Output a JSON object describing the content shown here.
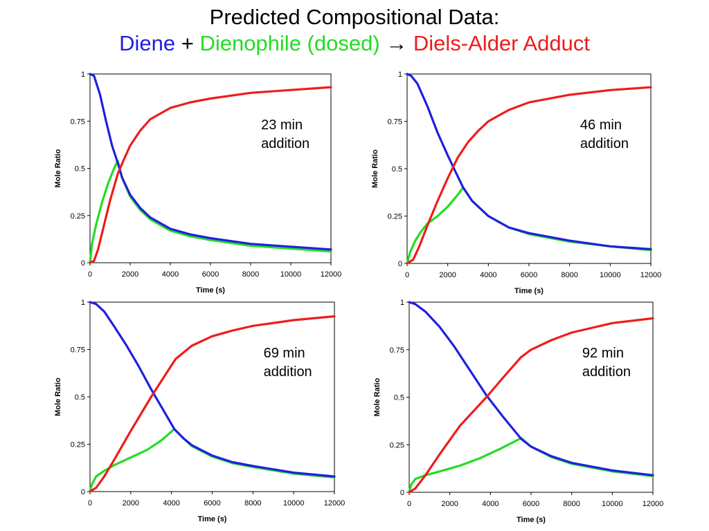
{
  "title": {
    "line1": "Predicted Compositional Data:",
    "diene": "Diene",
    "plus": "+",
    "dienophile": "Dienophile (dosed)",
    "arrow": "→",
    "adduct": "Diels-Alder Adduct"
  },
  "colors": {
    "diene": "#1f1fe0",
    "dienophile": "#22dd22",
    "adduct": "#ee1c1c"
  },
  "chart_data": [
    {
      "type": "line",
      "annotation": [
        "23 min",
        "addition"
      ],
      "xlabel": "Time (s)",
      "ylabel": "Mole Ratio",
      "xlim": [
        0,
        12000
      ],
      "ylim": [
        0,
        1
      ],
      "xticks": [
        "0",
        "2000",
        "4000",
        "6000",
        "8000",
        "10000",
        "12000"
      ],
      "yticks": [
        "0",
        "0.25",
        "0.5",
        "0.75",
        "1"
      ],
      "grid": false,
      "series": [
        {
          "key": "diene",
          "x": [
            0,
            200,
            500,
            800,
            1100,
            1380,
            1600,
            2000,
            2500,
            3000,
            4000,
            5000,
            6000,
            8000,
            10000,
            12000
          ],
          "y": [
            1,
            0.99,
            0.89,
            0.75,
            0.62,
            0.53,
            0.45,
            0.36,
            0.29,
            0.24,
            0.18,
            0.15,
            0.13,
            0.1,
            0.085,
            0.07
          ]
        },
        {
          "key": "dienophile",
          "x": [
            0,
            100,
            300,
            600,
            900,
            1200,
            1380,
            1600,
            2000,
            2500,
            3000,
            4000,
            5000,
            6000,
            8000,
            10000,
            12000
          ],
          "y": [
            0,
            0.1,
            0.2,
            0.32,
            0.42,
            0.5,
            0.54,
            0.45,
            0.35,
            0.28,
            0.23,
            0.17,
            0.14,
            0.12,
            0.09,
            0.075,
            0.06
          ]
        },
        {
          "key": "adduct",
          "x": [
            0,
            200,
            400,
            700,
            1000,
            1380,
            1700,
            2000,
            2500,
            3000,
            4000,
            5000,
            6000,
            8000,
            10000,
            12000
          ],
          "y": [
            0,
            0.01,
            0.07,
            0.2,
            0.33,
            0.47,
            0.55,
            0.62,
            0.7,
            0.76,
            0.82,
            0.85,
            0.87,
            0.9,
            0.915,
            0.93
          ]
        }
      ]
    },
    {
      "type": "line",
      "annotation": [
        "46 min",
        "addition"
      ],
      "xlabel": "Time (s)",
      "ylabel": "Mole Ratio",
      "xlim": [
        0,
        12000
      ],
      "ylim": [
        0,
        1
      ],
      "xticks": [
        "0",
        "2000",
        "4000",
        "6000",
        "8000",
        "10000",
        "12000"
      ],
      "yticks": [
        "0",
        "0.25",
        "0.5",
        "0.75",
        "1"
      ],
      "grid": false,
      "series": [
        {
          "key": "diene",
          "x": [
            0,
            200,
            500,
            1000,
            1500,
            2000,
            2400,
            2760,
            3200,
            4000,
            5000,
            6000,
            8000,
            10000,
            12000
          ],
          "y": [
            1,
            0.99,
            0.95,
            0.83,
            0.69,
            0.57,
            0.48,
            0.4,
            0.33,
            0.25,
            0.19,
            0.16,
            0.12,
            0.09,
            0.075
          ]
        },
        {
          "key": "dienophile",
          "x": [
            0,
            150,
            400,
            700,
            1000,
            1500,
            2000,
            2400,
            2760,
            3200,
            4000,
            5000,
            6000,
            8000,
            10000,
            12000
          ],
          "y": [
            0,
            0.06,
            0.12,
            0.17,
            0.21,
            0.25,
            0.3,
            0.35,
            0.4,
            0.33,
            0.25,
            0.19,
            0.155,
            0.115,
            0.09,
            0.07
          ]
        },
        {
          "key": "adduct",
          "x": [
            0,
            300,
            600,
            1000,
            1500,
            2000,
            2500,
            3000,
            3500,
            4000,
            5000,
            6000,
            8000,
            10000,
            12000
          ],
          "y": [
            0,
            0.02,
            0.09,
            0.2,
            0.33,
            0.45,
            0.56,
            0.64,
            0.7,
            0.75,
            0.81,
            0.85,
            0.89,
            0.915,
            0.93
          ]
        }
      ]
    },
    {
      "type": "line",
      "annotation": [
        "69 min",
        "addition"
      ],
      "xlabel": "Time (s)",
      "ylabel": "Mole Ratio",
      "xlim": [
        0,
        12000
      ],
      "ylim": [
        0,
        1
      ],
      "xticks": [
        "0",
        "2000",
        "4000",
        "6000",
        "8000",
        "10000",
        "12000"
      ],
      "yticks": [
        "0",
        "0.25",
        "0.5",
        "0.75",
        "1"
      ],
      "grid": false,
      "series": [
        {
          "key": "diene",
          "x": [
            0,
            300,
            700,
            1200,
            1800,
            2400,
            3000,
            3600,
            4140,
            4600,
            5000,
            6000,
            7000,
            8000,
            10000,
            12000
          ],
          "y": [
            1,
            0.99,
            0.95,
            0.87,
            0.77,
            0.66,
            0.54,
            0.43,
            0.33,
            0.28,
            0.245,
            0.19,
            0.155,
            0.135,
            0.1,
            0.08
          ]
        },
        {
          "key": "dienophile",
          "x": [
            0,
            100,
            300,
            700,
            1200,
            2000,
            2800,
            3500,
            4140,
            4600,
            5000,
            6000,
            7000,
            8000,
            10000,
            12000
          ],
          "y": [
            0,
            0.04,
            0.08,
            0.11,
            0.14,
            0.18,
            0.22,
            0.27,
            0.33,
            0.28,
            0.24,
            0.185,
            0.15,
            0.13,
            0.095,
            0.075
          ]
        },
        {
          "key": "adduct",
          "x": [
            0,
            300,
            700,
            1200,
            2000,
            3000,
            3600,
            4200,
            5000,
            6000,
            7000,
            8000,
            10000,
            12000
          ],
          "y": [
            0,
            0.02,
            0.08,
            0.17,
            0.32,
            0.5,
            0.6,
            0.7,
            0.77,
            0.82,
            0.85,
            0.875,
            0.905,
            0.925
          ]
        }
      ]
    },
    {
      "type": "line",
      "annotation": [
        "92 min",
        "addition"
      ],
      "xlabel": "Time (s)",
      "ylabel": "Mole Ratio",
      "xlim": [
        0,
        12000
      ],
      "ylim": [
        0,
        1
      ],
      "xticks": [
        "0",
        "2000",
        "4000",
        "6000",
        "8000",
        "10000",
        "12000"
      ],
      "yticks": [
        "0",
        "0.25",
        "0.5",
        "0.75",
        "1"
      ],
      "grid": false,
      "series": [
        {
          "key": "diene",
          "x": [
            0,
            300,
            800,
            1500,
            2200,
            3000,
            3800,
            4600,
            5520,
            6000,
            7000,
            8000,
            10000,
            12000
          ],
          "y": [
            1,
            0.99,
            0.95,
            0.87,
            0.77,
            0.64,
            0.51,
            0.4,
            0.28,
            0.24,
            0.19,
            0.155,
            0.115,
            0.09
          ]
        },
        {
          "key": "dienophile",
          "x": [
            0,
            100,
            300,
            800,
            1500,
            2500,
            3500,
            4500,
            5520,
            6000,
            7000,
            8000,
            10000,
            12000
          ],
          "y": [
            0,
            0.04,
            0.07,
            0.09,
            0.11,
            0.14,
            0.18,
            0.23,
            0.285,
            0.24,
            0.185,
            0.15,
            0.11,
            0.085
          ]
        },
        {
          "key": "adduct",
          "x": [
            0,
            300,
            800,
            1500,
            2500,
            3800,
            4600,
            5500,
            6000,
            7000,
            8000,
            10000,
            12000
          ],
          "y": [
            0,
            0.02,
            0.09,
            0.2,
            0.35,
            0.5,
            0.6,
            0.71,
            0.75,
            0.8,
            0.84,
            0.89,
            0.915
          ]
        }
      ]
    }
  ]
}
